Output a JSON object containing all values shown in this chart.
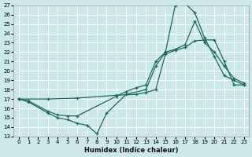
{
  "xlabel": "Humidex (Indice chaleur)",
  "background_color": "#cce8e8",
  "grid_color": "#ffffff",
  "line_color": "#1a6b5a",
  "xlim": [
    -0.5,
    23.5
  ],
  "ylim": [
    13,
    27
  ],
  "xticks": [
    0,
    1,
    2,
    3,
    4,
    5,
    6,
    7,
    8,
    9,
    10,
    11,
    12,
    13,
    14,
    15,
    16,
    17,
    18,
    19,
    20,
    21,
    22,
    23
  ],
  "yticks": [
    13,
    14,
    15,
    16,
    17,
    18,
    19,
    20,
    21,
    22,
    23,
    24,
    25,
    26,
    27
  ],
  "line1_x": [
    0,
    1,
    3,
    4,
    5,
    6,
    7,
    8,
    9,
    11,
    13,
    14,
    15,
    16,
    17,
    18,
    19,
    20,
    21,
    22,
    23
  ],
  "line1_y": [
    17.0,
    16.7,
    15.5,
    15.0,
    14.8,
    14.4,
    14.2,
    13.3,
    15.5,
    17.5,
    18.0,
    20.5,
    22.0,
    27.0,
    27.2,
    26.2,
    23.5,
    21.5,
    19.5,
    19.0,
    18.5
  ],
  "line2_x": [
    0,
    1,
    3,
    4,
    5,
    6,
    10,
    11,
    12,
    13,
    14,
    15,
    16,
    17,
    18,
    19,
    20,
    21,
    22,
    23
  ],
  "line2_y": [
    17.0,
    16.8,
    15.7,
    15.3,
    15.2,
    15.2,
    17.3,
    17.8,
    18.2,
    18.5,
    21.0,
    22.0,
    22.3,
    22.8,
    25.3,
    23.0,
    22.0,
    20.5,
    19.2,
    18.7
  ],
  "line3_x": [
    0,
    3,
    6,
    10,
    12,
    13,
    14,
    15,
    16,
    17,
    18,
    19,
    20,
    21,
    22,
    23
  ],
  "line3_y": [
    17.0,
    17.0,
    17.1,
    17.4,
    17.5,
    17.7,
    18.0,
    21.8,
    22.2,
    22.5,
    23.2,
    23.3,
    23.3,
    21.0,
    18.5,
    18.5
  ]
}
